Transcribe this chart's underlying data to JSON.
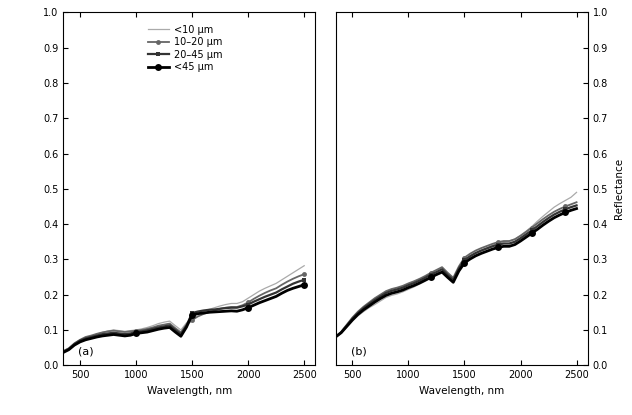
{
  "xlabel": "Wavelength, nm",
  "ylabel": "Reflectance",
  "xlim": [
    350,
    2600
  ],
  "ylim": [
    0.0,
    1.0
  ],
  "yticks": [
    0.0,
    0.1,
    0.2,
    0.3,
    0.4,
    0.5,
    0.6,
    0.7,
    0.8,
    0.9,
    1.0
  ],
  "xticks": [
    500,
    1000,
    1500,
    2000,
    2500
  ],
  "legend_labels": [
    "<10 μm",
    "10–20 μm",
    "20–45 μm",
    "<45 μm"
  ],
  "label_a": "(a)",
  "label_b": "(b)",
  "wavelengths": [
    350,
    400,
    450,
    500,
    550,
    600,
    650,
    700,
    750,
    800,
    850,
    900,
    950,
    1000,
    1050,
    1100,
    1150,
    1200,
    1250,
    1300,
    1350,
    1400,
    1450,
    1500,
    1550,
    1600,
    1650,
    1700,
    1750,
    1800,
    1850,
    1900,
    1950,
    2000,
    2050,
    2100,
    2150,
    2200,
    2250,
    2300,
    2350,
    2400,
    2450,
    2500
  ],
  "panel_a": {
    "lt10": [
      0.04,
      0.048,
      0.06,
      0.07,
      0.078,
      0.082,
      0.088,
      0.093,
      0.097,
      0.1,
      0.098,
      0.096,
      0.098,
      0.1,
      0.103,
      0.107,
      0.112,
      0.118,
      0.122,
      0.125,
      0.112,
      0.1,
      0.12,
      0.135,
      0.145,
      0.152,
      0.158,
      0.163,
      0.168,
      0.172,
      0.175,
      0.175,
      0.18,
      0.19,
      0.2,
      0.21,
      0.218,
      0.225,
      0.232,
      0.242,
      0.252,
      0.262,
      0.272,
      0.282
    ],
    "10_20": [
      0.04,
      0.048,
      0.062,
      0.072,
      0.08,
      0.084,
      0.089,
      0.093,
      0.096,
      0.098,
      0.096,
      0.094,
      0.096,
      0.098,
      0.1,
      0.103,
      0.107,
      0.112,
      0.115,
      0.118,
      0.105,
      0.093,
      0.115,
      0.128,
      0.138,
      0.145,
      0.15,
      0.155,
      0.16,
      0.163,
      0.165,
      0.165,
      0.17,
      0.178,
      0.188,
      0.197,
      0.205,
      0.212,
      0.218,
      0.228,
      0.237,
      0.245,
      0.252,
      0.258
    ],
    "20_45": [
      0.038,
      0.046,
      0.06,
      0.07,
      0.076,
      0.08,
      0.084,
      0.088,
      0.09,
      0.092,
      0.09,
      0.088,
      0.09,
      0.094,
      0.096,
      0.099,
      0.103,
      0.107,
      0.11,
      0.113,
      0.1,
      0.088,
      0.112,
      0.148,
      0.152,
      0.155,
      0.157,
      0.158,
      0.16,
      0.162,
      0.163,
      0.163,
      0.167,
      0.172,
      0.18,
      0.187,
      0.194,
      0.2,
      0.206,
      0.215,
      0.223,
      0.231,
      0.237,
      0.242
    ],
    "lt45": [
      0.036,
      0.044,
      0.057,
      0.066,
      0.072,
      0.076,
      0.08,
      0.083,
      0.085,
      0.087,
      0.085,
      0.083,
      0.085,
      0.09,
      0.092,
      0.094,
      0.098,
      0.102,
      0.105,
      0.107,
      0.094,
      0.082,
      0.108,
      0.143,
      0.146,
      0.148,
      0.15,
      0.151,
      0.152,
      0.153,
      0.154,
      0.153,
      0.157,
      0.163,
      0.17,
      0.177,
      0.183,
      0.189,
      0.195,
      0.204,
      0.212,
      0.218,
      0.223,
      0.228
    ]
  },
  "panel_b": {
    "lt10": [
      0.08,
      0.092,
      0.108,
      0.125,
      0.14,
      0.152,
      0.163,
      0.172,
      0.182,
      0.192,
      0.198,
      0.202,
      0.208,
      0.215,
      0.222,
      0.23,
      0.238,
      0.247,
      0.255,
      0.262,
      0.248,
      0.235,
      0.27,
      0.295,
      0.308,
      0.318,
      0.326,
      0.333,
      0.34,
      0.346,
      0.35,
      0.352,
      0.358,
      0.368,
      0.38,
      0.393,
      0.408,
      0.422,
      0.435,
      0.448,
      0.458,
      0.467,
      0.476,
      0.49
    ],
    "10_20": [
      0.08,
      0.095,
      0.115,
      0.135,
      0.152,
      0.166,
      0.178,
      0.19,
      0.2,
      0.21,
      0.216,
      0.22,
      0.225,
      0.232,
      0.238,
      0.245,
      0.253,
      0.262,
      0.27,
      0.278,
      0.262,
      0.248,
      0.28,
      0.305,
      0.316,
      0.325,
      0.332,
      0.338,
      0.344,
      0.349,
      0.352,
      0.352,
      0.357,
      0.367,
      0.378,
      0.39,
      0.402,
      0.414,
      0.425,
      0.435,
      0.443,
      0.45,
      0.456,
      0.462
    ],
    "20_45": [
      0.08,
      0.093,
      0.112,
      0.132,
      0.148,
      0.162,
      0.174,
      0.185,
      0.195,
      0.205,
      0.211,
      0.215,
      0.22,
      0.227,
      0.233,
      0.24,
      0.248,
      0.257,
      0.264,
      0.272,
      0.256,
      0.242,
      0.274,
      0.298,
      0.309,
      0.318,
      0.325,
      0.331,
      0.337,
      0.342,
      0.345,
      0.345,
      0.35,
      0.36,
      0.371,
      0.382,
      0.394,
      0.406,
      0.417,
      0.427,
      0.435,
      0.442,
      0.448,
      0.453
    ],
    "lt45": [
      0.08,
      0.092,
      0.11,
      0.128,
      0.144,
      0.157,
      0.168,
      0.179,
      0.189,
      0.198,
      0.204,
      0.208,
      0.213,
      0.22,
      0.226,
      0.233,
      0.241,
      0.249,
      0.257,
      0.264,
      0.249,
      0.235,
      0.267,
      0.29,
      0.301,
      0.31,
      0.317,
      0.323,
      0.329,
      0.334,
      0.337,
      0.337,
      0.342,
      0.352,
      0.363,
      0.374,
      0.385,
      0.397,
      0.408,
      0.418,
      0.426,
      0.433,
      0.439,
      0.444
    ]
  },
  "marker_wavelengths_a": [
    1000,
    1500,
    2000,
    2500
  ],
  "marker_wavelengths_b": [
    1200,
    1500,
    1800,
    2100,
    2400
  ],
  "colors": {
    "lt10": "#aaaaaa",
    "10_20": "#666666",
    "20_45": "#333333",
    "lt45": "#000000"
  },
  "linewidths": {
    "lt10": 0.9,
    "10_20": 1.3,
    "20_45": 1.6,
    "lt45": 2.0
  }
}
